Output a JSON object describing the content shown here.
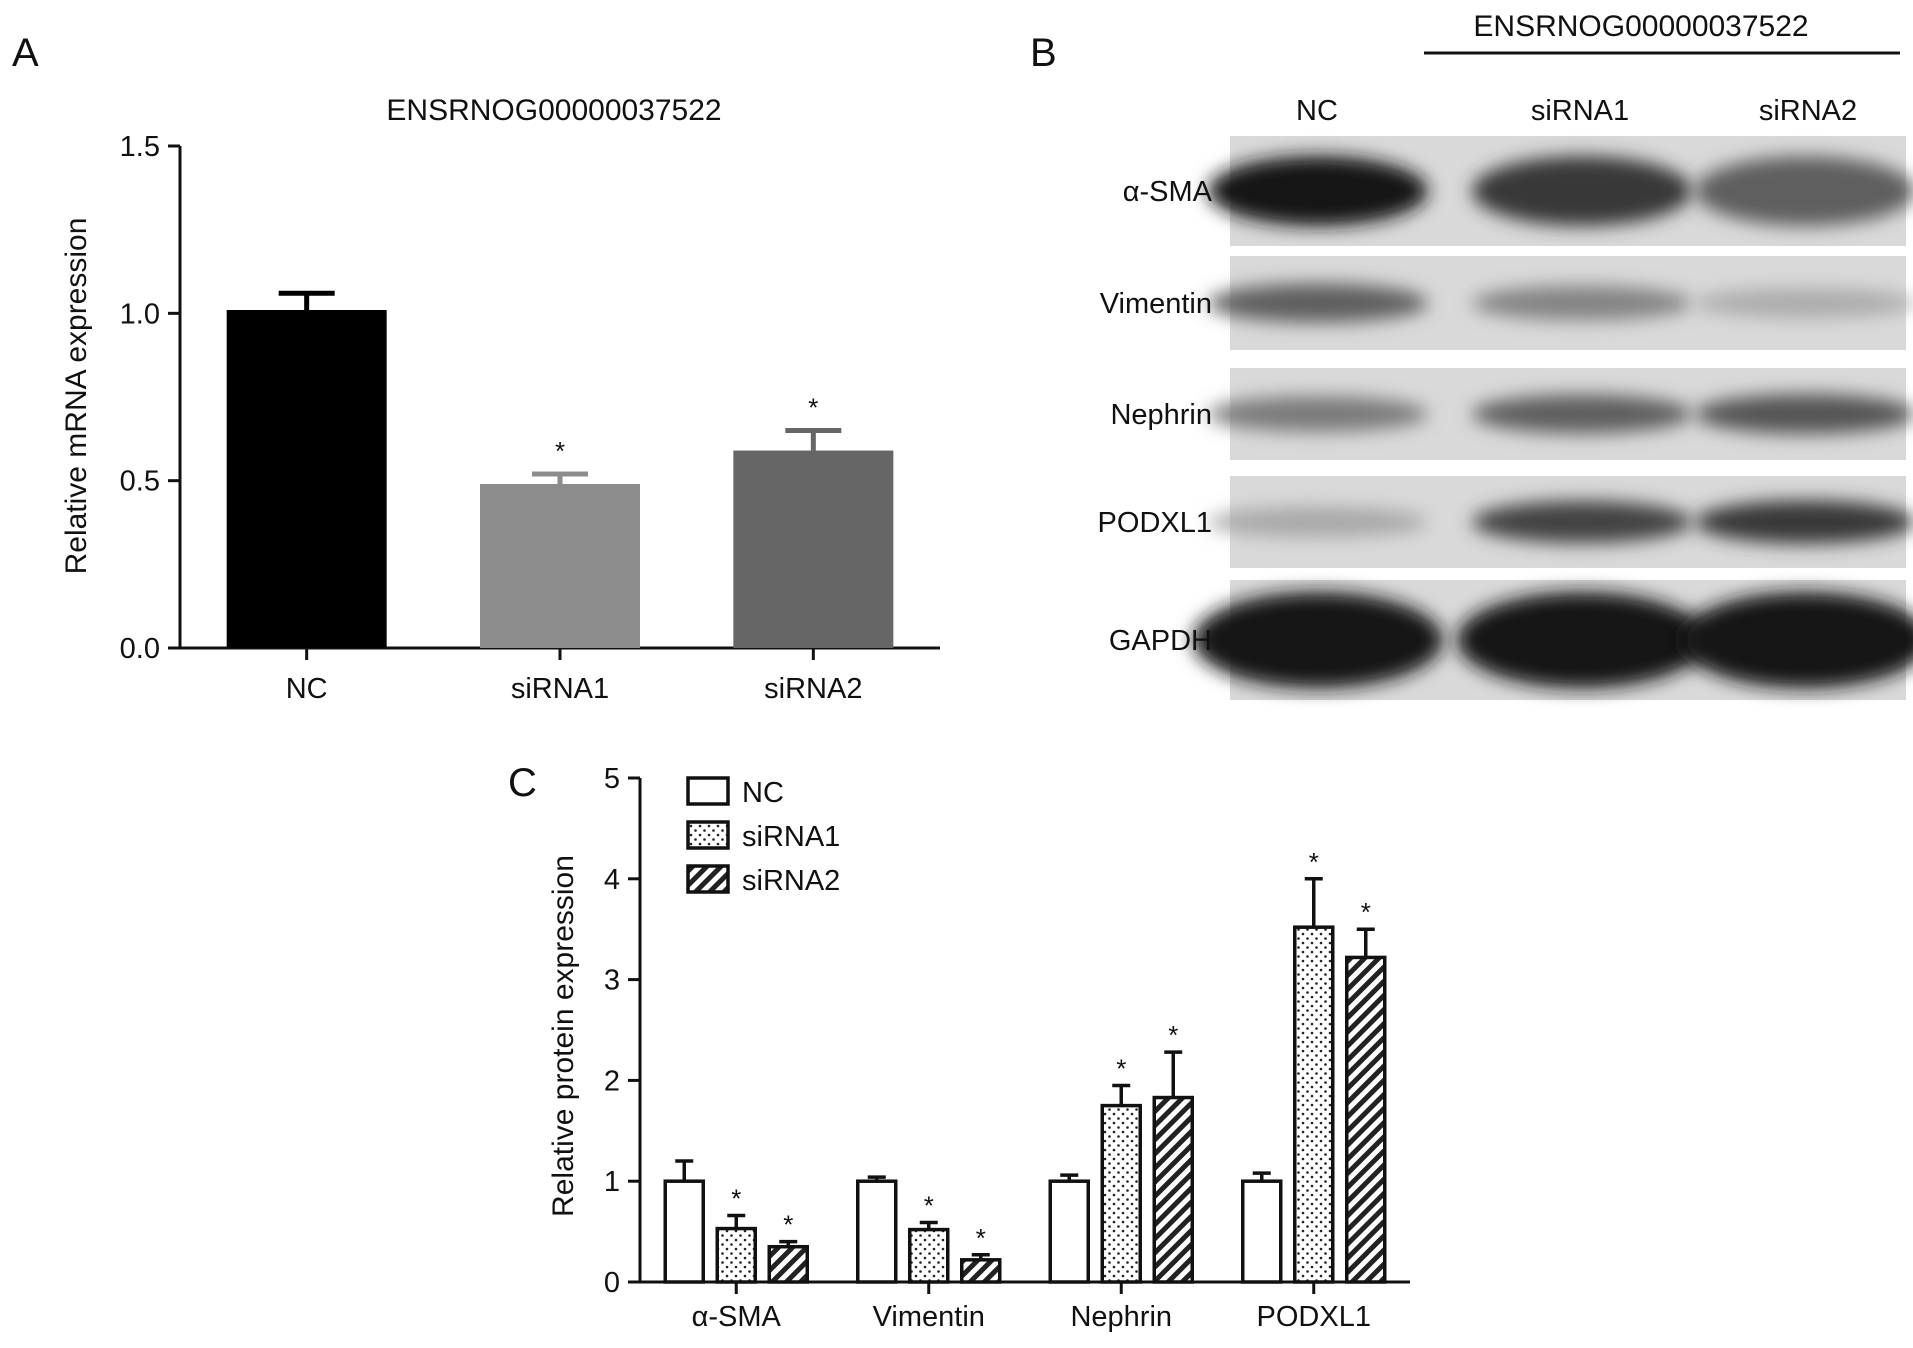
{
  "panels": {
    "a": "A",
    "b": "B",
    "c": "C"
  },
  "chart_data": [
    {
      "panel": "A",
      "type": "bar",
      "title": "ENSRNOG00000037522",
      "ylabel": "Relative mRNA expression",
      "xlabel": "",
      "categories": [
        "NC",
        "siRNA1",
        "siRNA2"
      ],
      "values": [
        1.01,
        0.49,
        0.59
      ],
      "errors": [
        0.05,
        0.03,
        0.06
      ],
      "significant": [
        false,
        true,
        true
      ],
      "significance_mark": "*",
      "colors": [
        "#000000",
        "#8c8c8c",
        "#666666"
      ],
      "ylim": [
        0,
        1.5
      ],
      "yticks": [
        "0.0",
        "0.5",
        "1.0",
        "1.5"
      ],
      "grid": false
    },
    {
      "panel": "C",
      "type": "bar",
      "ylabel": "Relative protein expression",
      "xlabel": "",
      "categories": [
        "α-SMA",
        "Vimentin",
        "Nephrin",
        "PODXL1"
      ],
      "series": [
        {
          "name": "NC",
          "pattern": "open",
          "values": [
            1.0,
            1.0,
            1.0,
            1.0
          ],
          "errors": [
            0.2,
            0.04,
            0.06,
            0.08
          ],
          "significant": [
            false,
            false,
            false,
            false
          ]
        },
        {
          "name": "siRNA1",
          "pattern": "dotted",
          "values": [
            0.53,
            0.52,
            1.75,
            3.52
          ],
          "errors": [
            0.13,
            0.07,
            0.2,
            0.48
          ],
          "significant": [
            true,
            true,
            true,
            true
          ]
        },
        {
          "name": "siRNA2",
          "pattern": "hatched",
          "values": [
            0.35,
            0.22,
            1.83,
            3.22
          ],
          "errors": [
            0.05,
            0.05,
            0.45,
            0.28
          ],
          "significant": [
            true,
            true,
            true,
            true
          ]
        }
      ],
      "significance_mark": "*",
      "ylim": [
        0,
        5
      ],
      "yticks": [
        "0",
        "1",
        "2",
        "3",
        "4",
        "5"
      ],
      "legend": "top-left",
      "grid": false
    }
  ],
  "blot": {
    "group_label": "ENSRNOG00000037522",
    "lanes": [
      "NC",
      "siRNA1",
      "siRNA2"
    ],
    "rows": [
      {
        "label": "α-SMA",
        "intensity": [
          1.0,
          0.8,
          0.6
        ]
      },
      {
        "label": "Vimentin",
        "intensity": [
          0.6,
          0.4,
          0.18
        ]
      },
      {
        "label": "Nephrin",
        "intensity": [
          0.45,
          0.6,
          0.65
        ]
      },
      {
        "label": "PODXL1",
        "intensity": [
          0.2,
          0.75,
          0.8
        ]
      },
      {
        "label": "GAPDH",
        "intensity": [
          1.0,
          1.0,
          1.0
        ]
      }
    ]
  }
}
